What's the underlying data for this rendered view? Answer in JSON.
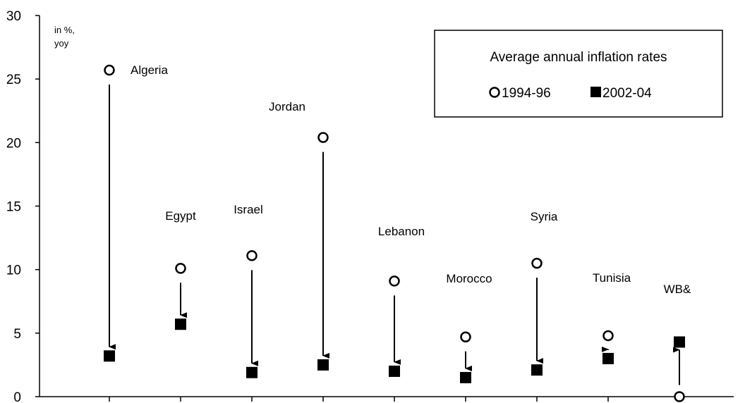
{
  "chart_data": {
    "type": "scatter",
    "title": "Average annual inflation rates",
    "unit_label": [
      "in %,",
      "yoy"
    ],
    "ylim": [
      0,
      30
    ],
    "yticks": [
      0,
      5,
      10,
      15,
      20,
      25,
      30
    ],
    "grid": false,
    "legend_position": "top-right",
    "categories": [
      "Algeria",
      "Egypt",
      "Israel",
      "Jordan",
      "Lebanon",
      "Morocco",
      "Syria",
      "Tunisia",
      "WB&"
    ],
    "series": [
      {
        "name": "1994-96",
        "marker": "open-circle",
        "color": "#000000",
        "values": [
          25.7,
          10.1,
          11.1,
          20.4,
          9.1,
          4.7,
          10.5,
          4.8,
          0.0
        ]
      },
      {
        "name": "2002-04",
        "marker": "filled-square",
        "color": "#000000",
        "values": [
          3.2,
          5.7,
          1.9,
          2.5,
          2.0,
          1.5,
          2.1,
          3.0,
          4.3
        ]
      }
    ],
    "arrows": "from 1994-96 value to 2002-04 value for each country"
  }
}
